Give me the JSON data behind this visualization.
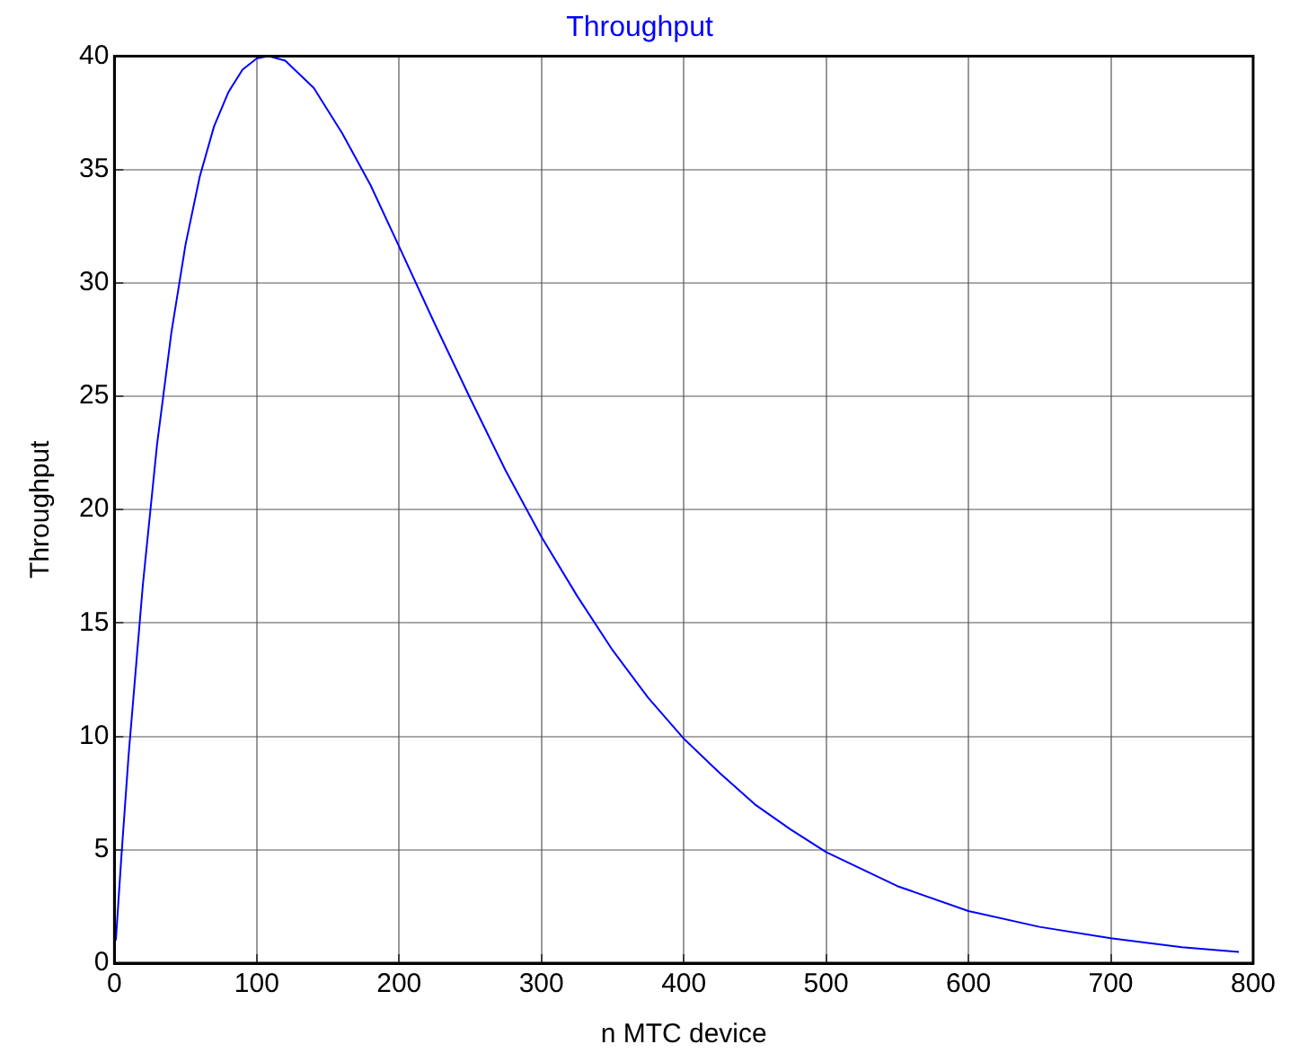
{
  "chart_data": {
    "type": "line",
    "title": "Throughput",
    "xlabel": "n MTC device",
    "ylabel": "Throughput",
    "x": [
      1,
      5,
      10,
      20,
      30,
      40,
      50,
      60,
      70,
      80,
      90,
      100,
      108,
      120,
      140,
      160,
      180,
      200,
      225,
      250,
      275,
      300,
      325,
      350,
      375,
      400,
      425,
      450,
      475,
      500,
      550,
      600,
      650,
      700,
      750,
      790
    ],
    "series": [
      {
        "color": "#0000ff",
        "values": [
          1.0,
          4.8,
          9.2,
          16.7,
          22.9,
          27.8,
          31.7,
          34.7,
          36.9,
          38.4,
          39.4,
          39.9,
          40.0,
          39.8,
          38.6,
          36.6,
          34.3,
          31.6,
          28.2,
          24.9,
          21.7,
          18.8,
          16.2,
          13.8,
          11.7,
          9.9,
          8.4,
          7.0,
          5.9,
          4.9,
          3.4,
          2.3,
          1.6,
          1.1,
          0.7,
          0.5
        ]
      }
    ],
    "xlim": [
      0,
      800
    ],
    "xticks": [
      0,
      100,
      200,
      300,
      400,
      500,
      600,
      700,
      800
    ],
    "ylim": [
      0,
      40
    ],
    "yticks": [
      0,
      5,
      10,
      15,
      20,
      25,
      30,
      35,
      40
    ],
    "grid": true,
    "legend": false,
    "marker": "none",
    "line_style": "solid"
  }
}
